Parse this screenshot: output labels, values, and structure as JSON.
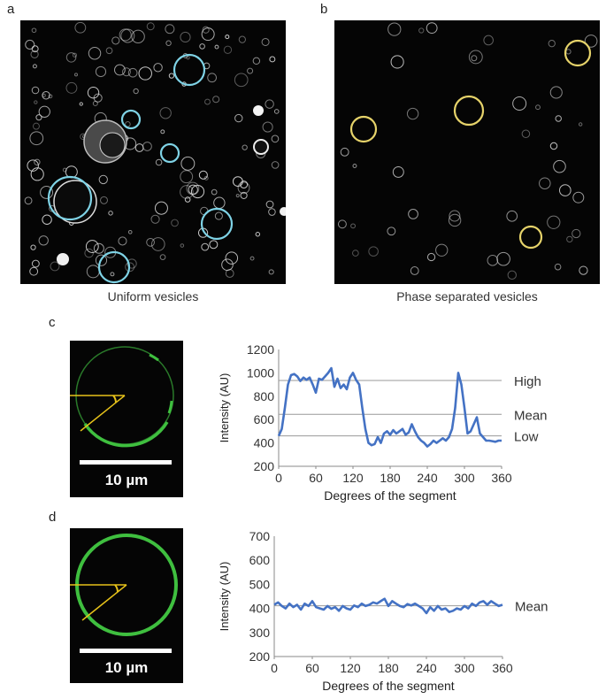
{
  "panels": {
    "a": {
      "letter": "a",
      "caption": "Uniform vesicles"
    },
    "b": {
      "letter": "b",
      "caption": "Phase separated vesicles"
    },
    "c": {
      "letter": "c",
      "scale_label": "10 µm"
    },
    "d": {
      "letter": "d",
      "scale_label": "10 µm"
    }
  },
  "colors": {
    "micrograph_bg": "#050505",
    "uniform_marker": "#7fd3e6",
    "phase_marker": "#e6d36a",
    "vesicle_green": "#3fbf3f",
    "angle_lines": "#e6c21a",
    "series_line": "#4472c4",
    "reference_line": "#999999"
  },
  "chart_data": [
    {
      "id": "c",
      "type": "line",
      "xlabel": "Degrees of the segment",
      "ylabel": "Intensity (AU)",
      "xlim": [
        0,
        360
      ],
      "ylim": [
        200,
        1200
      ],
      "xticks": [
        0,
        60,
        120,
        180,
        240,
        300,
        360
      ],
      "yticks": [
        200,
        400,
        600,
        800,
        1000,
        1200
      ],
      "reference_lines": [
        {
          "label": "High",
          "value": 935
        },
        {
          "label": "Mean",
          "value": 645
        },
        {
          "label": "Low",
          "value": 460
        }
      ],
      "x": [
        0,
        5,
        10,
        15,
        20,
        25,
        30,
        35,
        40,
        45,
        50,
        55,
        60,
        65,
        70,
        75,
        80,
        85,
        90,
        95,
        100,
        105,
        110,
        115,
        120,
        125,
        130,
        135,
        140,
        145,
        150,
        155,
        160,
        165,
        170,
        175,
        180,
        185,
        190,
        195,
        200,
        205,
        210,
        215,
        220,
        225,
        230,
        235,
        240,
        245,
        250,
        255,
        260,
        265,
        270,
        275,
        280,
        285,
        290,
        295,
        300,
        305,
        310,
        315,
        320,
        325,
        330,
        335,
        340,
        345,
        350,
        355,
        360
      ],
      "y": [
        460,
        520,
        700,
        900,
        980,
        990,
        970,
        930,
        960,
        940,
        960,
        900,
        830,
        950,
        940,
        970,
        1000,
        1040,
        880,
        950,
        870,
        900,
        860,
        960,
        1000,
        940,
        900,
        700,
        520,
        400,
        380,
        390,
        450,
        400,
        480,
        500,
        470,
        510,
        480,
        500,
        520,
        470,
        490,
        560,
        500,
        450,
        420,
        400,
        370,
        390,
        420,
        400,
        420,
        440,
        420,
        450,
        520,
        700,
        1000,
        900,
        700,
        480,
        500,
        560,
        620,
        480,
        450,
        420,
        420,
        415,
        410,
        420,
        420
      ]
    },
    {
      "id": "d",
      "type": "line",
      "xlabel": "Degrees of the segment",
      "ylabel": "Intensity (AU)",
      "xlim": [
        0,
        360
      ],
      "ylim": [
        200,
        700
      ],
      "xticks": [
        0,
        60,
        120,
        180,
        240,
        300,
        360
      ],
      "yticks": [
        200,
        300,
        400,
        500,
        600,
        700
      ],
      "reference_lines": [
        {
          "label": "Mean",
          "value": 411
        }
      ],
      "x": [
        0,
        6,
        12,
        18,
        24,
        30,
        36,
        42,
        48,
        54,
        60,
        66,
        72,
        78,
        84,
        90,
        96,
        102,
        108,
        114,
        120,
        126,
        132,
        138,
        144,
        150,
        156,
        162,
        168,
        174,
        180,
        186,
        192,
        198,
        204,
        210,
        216,
        222,
        228,
        234,
        240,
        246,
        252,
        258,
        264,
        270,
        276,
        282,
        288,
        294,
        300,
        306,
        312,
        318,
        324,
        330,
        336,
        342,
        348,
        354,
        360
      ],
      "y": [
        415,
        425,
        410,
        400,
        420,
        405,
        415,
        395,
        420,
        410,
        430,
        405,
        400,
        395,
        410,
        398,
        405,
        390,
        410,
        400,
        395,
        412,
        405,
        420,
        410,
        415,
        425,
        420,
        430,
        440,
        410,
        430,
        420,
        410,
        405,
        418,
        412,
        420,
        410,
        400,
        380,
        405,
        390,
        410,
        395,
        400,
        385,
        390,
        400,
        395,
        410,
        400,
        420,
        410,
        425,
        430,
        415,
        430,
        420,
        410,
        415
      ]
    }
  ]
}
